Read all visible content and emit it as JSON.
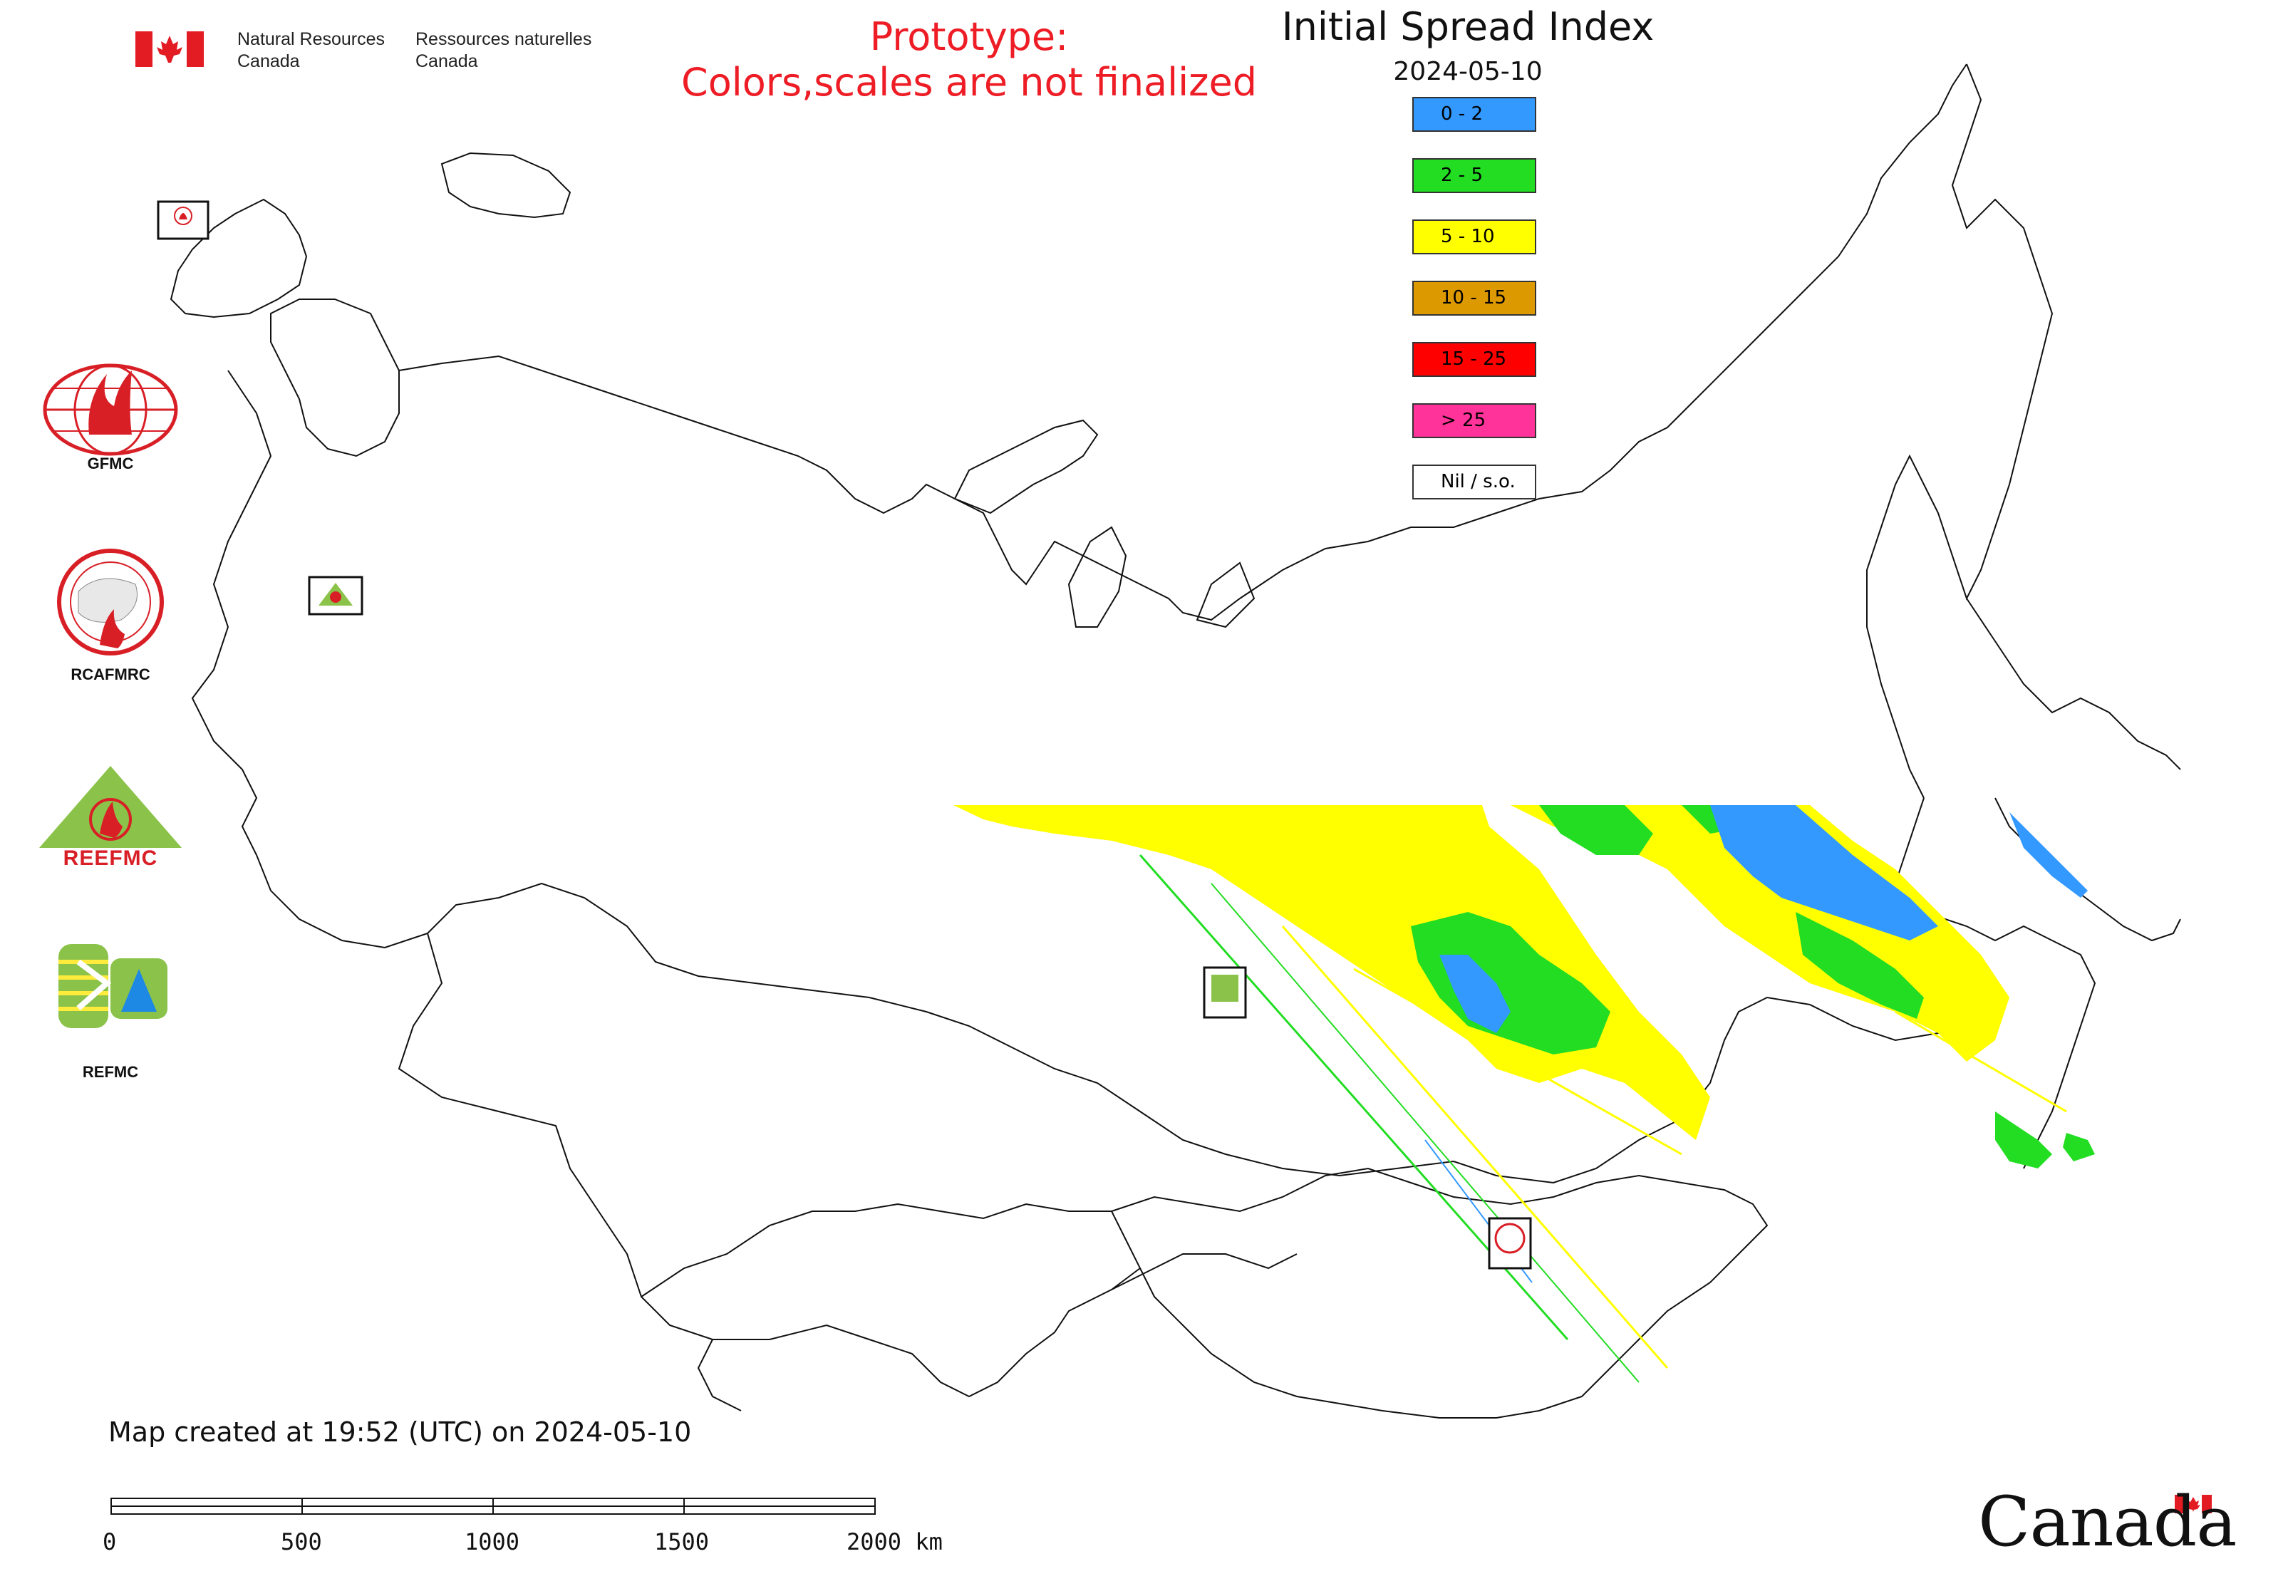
{
  "header": {
    "org_en_line1": "Natural Resources",
    "org_en_line2": "Canada",
    "org_fr_line1": "Ressources naturelles",
    "org_fr_line2": "Canada",
    "prototype_line1": "Prototype:",
    "prototype_line2": "Colors,scales are not finalized",
    "title": "Initial Spread Index",
    "date": "2024-05-10"
  },
  "legend": [
    {
      "label": "0 - 2",
      "color": "#3399ff"
    },
    {
      "label": "2 - 5",
      "color": "#22dd22"
    },
    {
      "label": "5 - 10",
      "color": "#ffff00"
    },
    {
      "label": "10 - 15",
      "color": "#dd9900"
    },
    {
      "label": "15 - 25",
      "color": "#ff0000"
    },
    {
      "label": "> 25",
      "color": "#ff3399"
    },
    {
      "label": "Nil / s.o.",
      "color": "#ffffff"
    }
  ],
  "logos": {
    "gfmc": "GFMC",
    "rcafmrc": "RCAFMRC",
    "reefmc": "REEFMC",
    "refmc": "REFMC",
    "gfmc_small": "GFMC",
    "reefmc_small": "REEFMC",
    "refmc_small": "REFMC",
    "rcafmrc_small": "RCAFMRC"
  },
  "footer": {
    "created": "Map created at 19:52 (UTC) on 2024-05-10",
    "scale_labels": [
      "0",
      "500",
      "1000",
      "1500",
      "2000 km"
    ],
    "wordmark": "Canada"
  }
}
